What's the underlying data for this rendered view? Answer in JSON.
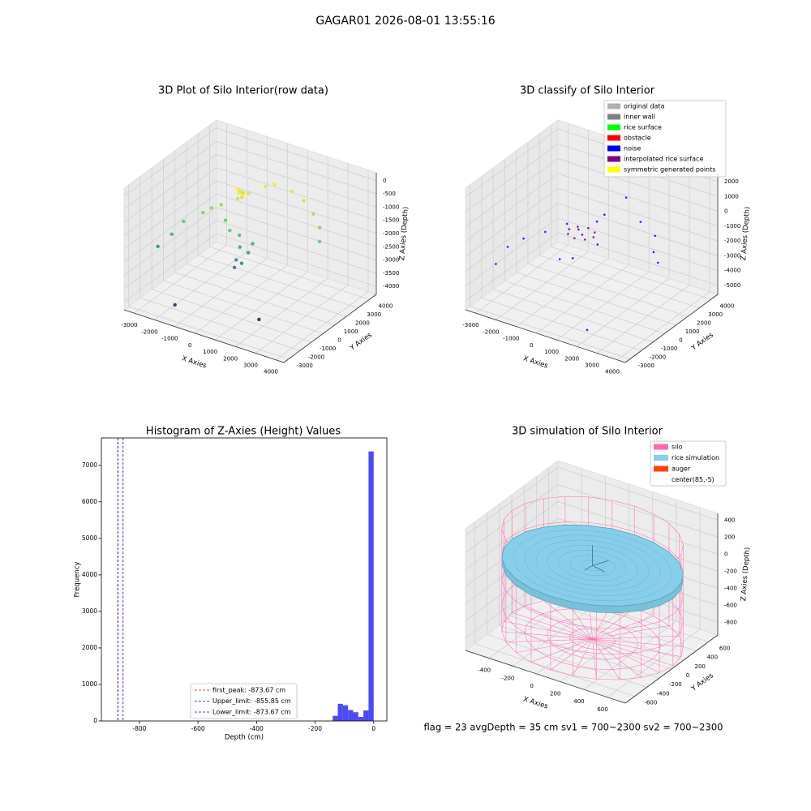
{
  "title": "GAGAR01 2026-08-01 13:55:16",
  "footer": "flag = 23  avgDepth = 35 cm    sv1 = 700~2300  sv2 = 700~2300",
  "chart_data": [
    {
      "type": "scatter3d",
      "title": "3D Plot of Silo Interior(row data)",
      "xlabel": "X Axies",
      "ylabel": "Y Axies",
      "zlabel": "Z Axies (Depth)",
      "xlim": [
        -3500,
        4400
      ],
      "ylim": [
        -3400,
        4600
      ],
      "zlim": [
        -4300,
        300
      ],
      "xticks": [
        -3000,
        -2000,
        -1000,
        0,
        1000,
        2000,
        3000,
        4000
      ],
      "yticks": [
        -3000,
        -2000,
        -1000,
        0,
        1000,
        2000,
        3000,
        4000
      ],
      "zticks": [
        -4000,
        -3500,
        -3000,
        -2500,
        -2000,
        -1500,
        -1000,
        -500,
        0
      ],
      "colormap": "viridis",
      "series": [
        {
          "x": [
            -900,
            -800,
            -700,
            -1000,
            -600,
            -850,
            -750,
            -950,
            0,
            800,
            1500,
            2200,
            2800,
            3200,
            -300,
            -2000,
            -2500,
            -1800,
            -2800,
            -3200,
            -1500,
            -200,
            0,
            300,
            200,
            -100,
            100,
            400,
            -1000,
            -500,
            -1500,
            1800
          ],
          "y": [
            2000,
            2200,
            1900,
            2100,
            2300,
            1800,
            2050,
            2300,
            3500,
            3600,
            3400,
            3000,
            2500,
            1800,
            3200,
            800,
            0,
            1200,
            -500,
            -1000,
            1500,
            800,
            500,
            700,
            300,
            200,
            0,
            900,
            1000,
            500,
            -2500,
            -1000
          ],
          "z": [
            -950,
            -1000,
            -1050,
            -900,
            -1000,
            -1100,
            -980,
            -1020,
            -900,
            -1000,
            -1100,
            -1300,
            -1500,
            -1700,
            -950,
            -1600,
            -1800,
            -1500,
            -2200,
            -2600,
            -1400,
            -2000,
            -2300,
            -2500,
            -2800,
            -3000,
            -2600,
            -2200,
            -1700,
            -1800,
            -3900,
            -4100
          ]
        }
      ]
    },
    {
      "type": "scatter3d",
      "title": "3D classify of Silo Interior",
      "xlabel": "X Axies",
      "ylabel": "Y Axies",
      "zlabel": "Z Axies (Depth)",
      "xlim": [
        -3500,
        4400
      ],
      "ylim": [
        -3400,
        4600
      ],
      "zlim": [
        -5600,
        2600
      ],
      "xticks": [
        -3000,
        -2000,
        -1000,
        0,
        1000,
        2000,
        3000,
        4000
      ],
      "yticks": [
        -3000,
        -2000,
        -1000,
        0,
        1000,
        2000,
        3000,
        4000
      ],
      "zticks": [
        -5000,
        -4000,
        -3000,
        -2000,
        -1000,
        0,
        1000,
        2000
      ],
      "series": [
        {
          "name": "original data",
          "color": "#b0b0b0",
          "x": [],
          "y": [],
          "z": []
        },
        {
          "name": "inner wall",
          "color": "#808080",
          "x": [],
          "y": [],
          "z": []
        },
        {
          "name": "rice surface",
          "color": "#00ff00",
          "x": [],
          "y": [],
          "z": []
        },
        {
          "name": "obstacle",
          "color": "#ff0000",
          "x": [],
          "y": [],
          "z": []
        },
        {
          "name": "noise",
          "color": "#0000ff",
          "x": [
            -2500,
            -2000,
            -1000,
            0,
            1500,
            2500,
            3000,
            3500,
            -2800,
            1000,
            500,
            2000,
            -1500,
            200,
            -500,
            800,
            -200,
            100
          ],
          "y": [
            -1500,
            -1000,
            1000,
            2500,
            3000,
            2500,
            1500,
            1000,
            -2000,
            -2000,
            3500,
            -2500,
            0,
            1500,
            -500,
            500,
            600,
            400
          ],
          "z": [
            -2000,
            -1500,
            -1200,
            -1000,
            -1100,
            -1300,
            -1600,
            -1800,
            -3000,
            -900,
            -200,
            -5000,
            -1400,
            -800,
            -2500,
            -1500,
            -1000,
            -1100
          ]
        },
        {
          "name": "interpolated rice surface",
          "color": "#800080",
          "x": [
            600,
            420,
            0,
            -420,
            -600,
            -420,
            0,
            420
          ],
          "y": [
            500,
            920,
            1100,
            920,
            500,
            80,
            -100,
            80
          ],
          "z": [
            -1100,
            -1100,
            -1100,
            -1100,
            -1100,
            -1100,
            -1100,
            -1100
          ]
        },
        {
          "name": "symmetric generated points",
          "color": "#ffff00",
          "x": [],
          "y": [],
          "z": []
        }
      ]
    },
    {
      "type": "histogram",
      "title": "Histogram of Z-Axies (Height) Values",
      "xlabel": "Depth (cm)",
      "ylabel": "Frequency",
      "color": "#4b4bf5",
      "bins": [
        -140,
        -122.5,
        -105,
        -87.5,
        -70,
        -52.5,
        -35,
        -17.5,
        0
      ],
      "values": [
        140,
        470,
        430,
        300,
        240,
        110,
        290,
        7380
      ],
      "xlim": [
        -930,
        45
      ],
      "ylim": [
        0,
        7750
      ],
      "xticks": [
        -800,
        -600,
        -400,
        -200,
        0
      ],
      "yticks": [
        0,
        1000,
        2000,
        3000,
        4000,
        5000,
        6000,
        7000
      ],
      "lines": [
        {
          "label": "first_peak: -873.67 cm",
          "value": -873.67,
          "color": "#ff0000"
        },
        {
          "label": "Upper_limit: -855.85 cm",
          "value": -855.85,
          "color": "#0000ff"
        },
        {
          "label": "Lower_limit: -873.67 cm",
          "value": -873.67,
          "color": "#0000ff"
        }
      ]
    },
    {
      "type": "silo3d",
      "title": "3D simulation of Silo Interior",
      "xlabel": "X Axies",
      "ylabel": "Y Axies",
      "zlabel": "Z Axies (Depth)",
      "xlim": [
        -600,
        750
      ],
      "ylim": [
        -750,
        750
      ],
      "zlim": [
        -950,
        480
      ],
      "xticks": [
        -400,
        -200,
        0,
        200,
        400,
        600
      ],
      "yticks": [
        -600,
        -400,
        -200,
        0,
        200,
        400,
        600
      ],
      "zticks": [
        -800,
        -600,
        -400,
        -200,
        0,
        200,
        400
      ],
      "silo": {
        "cx": 85,
        "cy": -5,
        "radius": 680,
        "top": 300,
        "bottom": -900
      },
      "rice_z": -35,
      "series": [
        {
          "name": "silo",
          "color": "#ff69b4"
        },
        {
          "name": "rice simulation",
          "color": "#87ceeb"
        },
        {
          "name": "auger",
          "color": "#ff4500"
        },
        {
          "name": "center(85,-5)",
          "color": "#ffffff"
        }
      ]
    }
  ]
}
